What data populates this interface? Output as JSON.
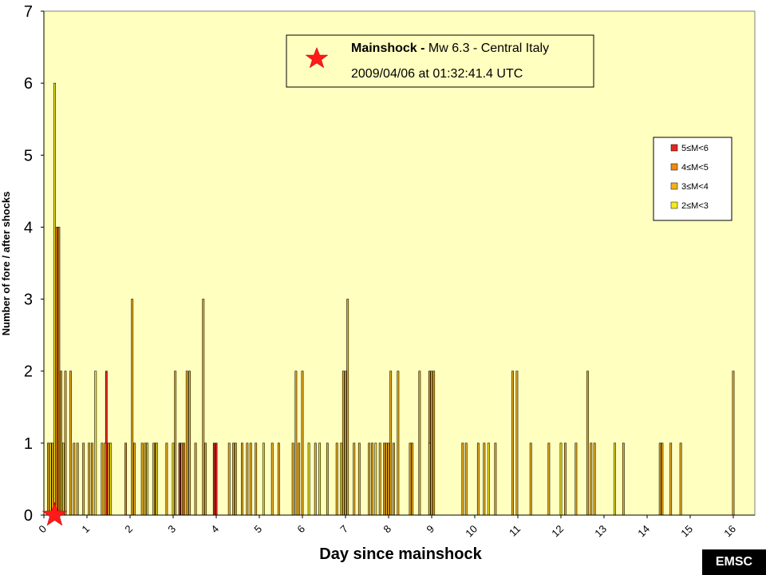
{
  "info_box": {
    "title_bold": "Mainshock -",
    "title_rest": " Mw 6.3 - Central Italy",
    "datetime": "2009/04/06 at 01:32:41.4 UTC"
  },
  "badge": "EMSC",
  "legend": {
    "items": [
      {
        "label": "5≤M<6",
        "color": "#e8261e"
      },
      {
        "label": "4≤M<5",
        "color": "#ef8a12"
      },
      {
        "label": "3≤M<4",
        "color": "#f2b21a"
      },
      {
        "label": "2≤M<3",
        "color": "#f5ea1a"
      }
    ]
  },
  "chart_data": {
    "type": "bar",
    "title": "",
    "xlabel": "Day since mainshock",
    "ylabel": "Number of fore / after shocks",
    "xlim": [
      0,
      16.5
    ],
    "ylim": [
      0,
      7
    ],
    "xticks": [
      "0",
      "1",
      "2",
      "3",
      "4",
      "5",
      "6",
      "7",
      "8",
      "9",
      "10",
      "11",
      "12",
      "13",
      "14",
      "15",
      "16"
    ],
    "yticks": [
      "0",
      "1",
      "2",
      "3",
      "4",
      "5",
      "6",
      "7"
    ],
    "plot_background": "#ffffc0",
    "mainshock_marker": {
      "x": 0.25,
      "y": 0,
      "color": "#ff1a1a"
    },
    "series": [
      {
        "name": "5≤M<6",
        "color": "#e8261e",
        "bars": [
          {
            "x": 1.45,
            "y": 2
          },
          {
            "x": 3.15,
            "y": 1
          },
          {
            "x": 3.95,
            "y": 1
          },
          {
            "x": 4.0,
            "y": 1
          }
        ]
      },
      {
        "name": "4≤M<5",
        "color": "#ef8a12",
        "bars": [
          {
            "x": 0.3,
            "y": 4
          },
          {
            "x": 0.35,
            "y": 4
          },
          {
            "x": 1.9,
            "y": 1
          },
          {
            "x": 3.25,
            "y": 1
          },
          {
            "x": 8.95,
            "y": 2
          }
        ]
      },
      {
        "name": "3≤M<4",
        "color": "#f2b21a",
        "bars": [
          {
            "x": 0.1,
            "y": 1
          },
          {
            "x": 0.2,
            "y": 1
          },
          {
            "x": 0.4,
            "y": 2
          },
          {
            "x": 0.5,
            "y": 2
          },
          {
            "x": 0.62,
            "y": 2
          },
          {
            "x": 0.7,
            "y": 1
          },
          {
            "x": 0.78,
            "y": 1
          },
          {
            "x": 0.92,
            "y": 1
          },
          {
            "x": 1.05,
            "y": 1
          },
          {
            "x": 1.12,
            "y": 1
          },
          {
            "x": 1.35,
            "y": 1
          },
          {
            "x": 1.42,
            "y": 1
          },
          {
            "x": 1.5,
            "y": 1
          },
          {
            "x": 2.05,
            "y": 3
          },
          {
            "x": 2.1,
            "y": 1
          },
          {
            "x": 2.28,
            "y": 1
          },
          {
            "x": 2.35,
            "y": 1
          },
          {
            "x": 2.55,
            "y": 1
          },
          {
            "x": 2.6,
            "y": 1
          },
          {
            "x": 2.85,
            "y": 1
          },
          {
            "x": 3.05,
            "y": 2
          },
          {
            "x": 3.2,
            "y": 1
          },
          {
            "x": 3.32,
            "y": 2
          },
          {
            "x": 3.38,
            "y": 2
          },
          {
            "x": 3.52,
            "y": 1
          },
          {
            "x": 3.7,
            "y": 3
          },
          {
            "x": 3.75,
            "y": 1
          },
          {
            "x": 4.3,
            "y": 1
          },
          {
            "x": 4.4,
            "y": 1
          },
          {
            "x": 4.45,
            "y": 1
          },
          {
            "x": 4.6,
            "y": 1
          },
          {
            "x": 4.72,
            "y": 1
          },
          {
            "x": 4.8,
            "y": 1
          },
          {
            "x": 4.92,
            "y": 1
          },
          {
            "x": 5.3,
            "y": 1
          },
          {
            "x": 5.45,
            "y": 1
          },
          {
            "x": 5.78,
            "y": 1
          },
          {
            "x": 5.85,
            "y": 2
          },
          {
            "x": 5.92,
            "y": 1
          },
          {
            "x": 6.0,
            "y": 2
          },
          {
            "x": 6.3,
            "y": 1
          },
          {
            "x": 6.58,
            "y": 1
          },
          {
            "x": 6.8,
            "y": 1
          },
          {
            "x": 6.95,
            "y": 2
          },
          {
            "x": 7.0,
            "y": 2
          },
          {
            "x": 7.05,
            "y": 3
          },
          {
            "x": 7.2,
            "y": 1
          },
          {
            "x": 7.32,
            "y": 1
          },
          {
            "x": 7.55,
            "y": 1
          },
          {
            "x": 7.62,
            "y": 1
          },
          {
            "x": 7.8,
            "y": 1
          },
          {
            "x": 7.9,
            "y": 1
          },
          {
            "x": 7.95,
            "y": 1
          },
          {
            "x": 8.0,
            "y": 1
          },
          {
            "x": 8.05,
            "y": 2
          },
          {
            "x": 8.12,
            "y": 1
          },
          {
            "x": 8.22,
            "y": 2
          },
          {
            "x": 8.5,
            "y": 1
          },
          {
            "x": 8.55,
            "y": 1
          },
          {
            "x": 8.72,
            "y": 2
          },
          {
            "x": 8.95,
            "y": 1
          },
          {
            "x": 9.0,
            "y": 2
          },
          {
            "x": 9.05,
            "y": 2
          },
          {
            "x": 9.72,
            "y": 1
          },
          {
            "x": 9.8,
            "y": 1
          },
          {
            "x": 10.08,
            "y": 1
          },
          {
            "x": 10.22,
            "y": 1
          },
          {
            "x": 10.48,
            "y": 1
          },
          {
            "x": 10.88,
            "y": 2
          },
          {
            "x": 10.98,
            "y": 2
          },
          {
            "x": 11.3,
            "y": 1
          },
          {
            "x": 11.72,
            "y": 1
          },
          {
            "x": 12.1,
            "y": 1
          },
          {
            "x": 12.35,
            "y": 1
          },
          {
            "x": 12.62,
            "y": 2
          },
          {
            "x": 12.7,
            "y": 1
          },
          {
            "x": 12.78,
            "y": 1
          },
          {
            "x": 13.45,
            "y": 1
          },
          {
            "x": 14.3,
            "y": 1
          },
          {
            "x": 14.35,
            "y": 1
          },
          {
            "x": 14.55,
            "y": 1
          },
          {
            "x": 14.78,
            "y": 1
          },
          {
            "x": 16.0,
            "y": 2
          }
        ]
      },
      {
        "name": "2≤M<3",
        "color": "#f5ea1a",
        "bars": [
          {
            "x": 0.15,
            "y": 1
          },
          {
            "x": 0.25,
            "y": 6
          },
          {
            "x": 0.45,
            "y": 1
          },
          {
            "x": 1.2,
            "y": 2
          },
          {
            "x": 1.55,
            "y": 1
          },
          {
            "x": 2.4,
            "y": 1
          },
          {
            "x": 2.62,
            "y": 1
          },
          {
            "x": 3.0,
            "y": 1
          },
          {
            "x": 5.1,
            "y": 1
          },
          {
            "x": 6.15,
            "y": 1
          },
          {
            "x": 6.4,
            "y": 1
          },
          {
            "x": 6.9,
            "y": 1
          },
          {
            "x": 7.7,
            "y": 1
          },
          {
            "x": 10.32,
            "y": 1
          },
          {
            "x": 12.0,
            "y": 1
          },
          {
            "x": 13.25,
            "y": 1
          }
        ]
      }
    ]
  }
}
